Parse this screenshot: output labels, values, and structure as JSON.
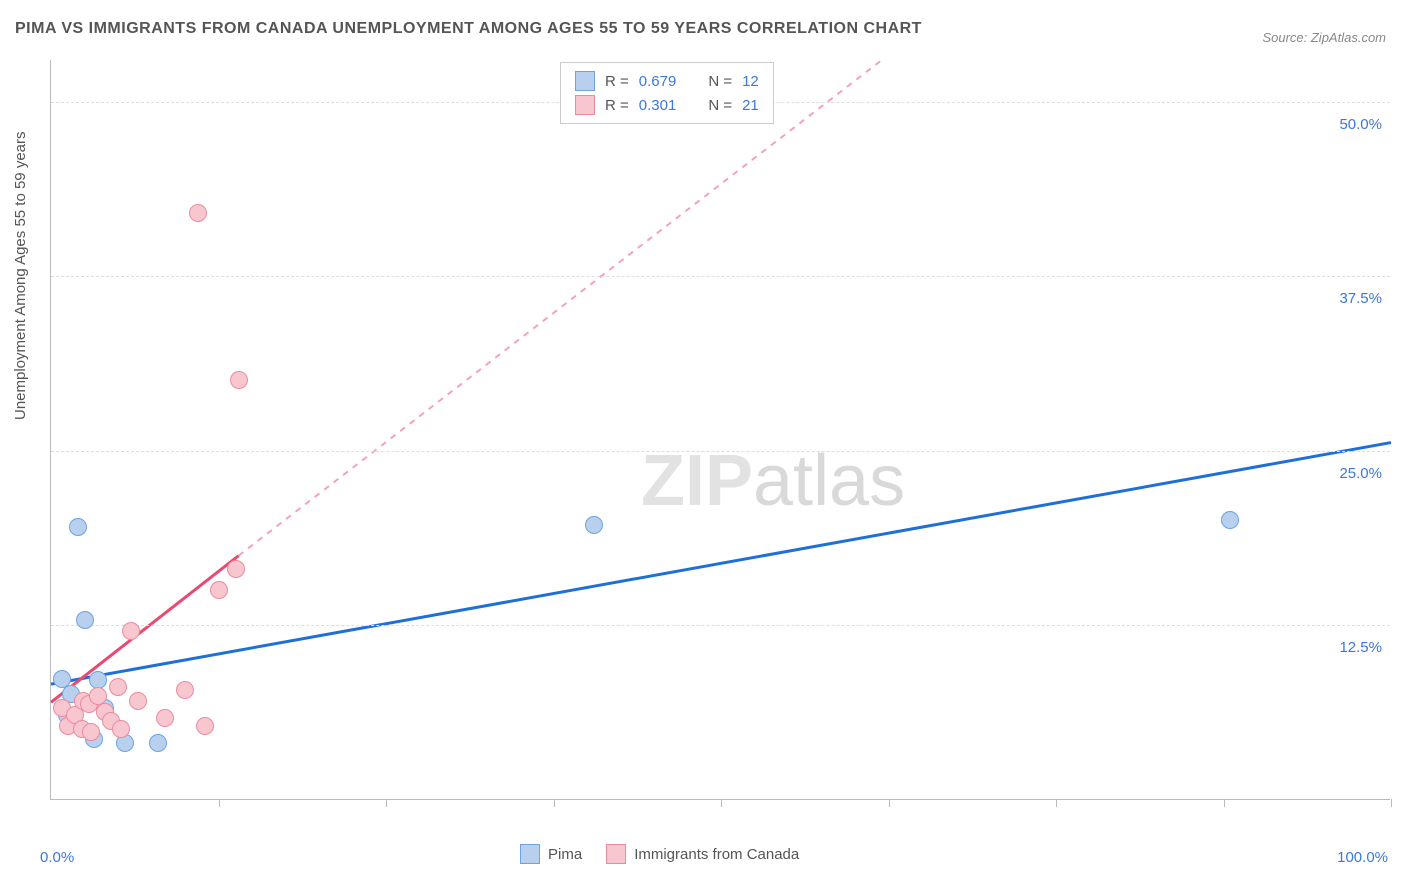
{
  "title": "PIMA VS IMMIGRANTS FROM CANADA UNEMPLOYMENT AMONG AGES 55 TO 59 YEARS CORRELATION CHART",
  "source": "Source: ZipAtlas.com",
  "ylabel": "Unemployment Among Ages 55 to 59 years",
  "watermark_a": "ZIP",
  "watermark_b": "atlas",
  "axes": {
    "x_min_label": "0.0%",
    "x_max_label": "100.0%",
    "xlim": [
      0,
      100
    ],
    "ylim": [
      0,
      53
    ],
    "x_ticks": [
      12.5,
      25,
      37.5,
      50,
      62.5,
      75,
      87.5,
      100
    ],
    "y_grid": [
      {
        "val": 12.5,
        "label": "12.5%"
      },
      {
        "val": 25.0,
        "label": "25.0%"
      },
      {
        "val": 37.5,
        "label": "37.5%"
      },
      {
        "val": 50.0,
        "label": "50.0%"
      }
    ],
    "grid_color": "#dddddd",
    "axis_color": "#bbbbbb",
    "label_color": "#3c78d8"
  },
  "series": [
    {
      "name": "Pima",
      "color_fill": "#b8d0ee",
      "color_stroke": "#6fa3e0",
      "r_value": "0.679",
      "n_value": "12",
      "trend": {
        "x1": 0,
        "y1": 8.3,
        "x2": 100,
        "y2": 25.6,
        "color": "#1f6fd8"
      },
      "points": [
        {
          "x": 0.8,
          "y": 8.6
        },
        {
          "x": 1.2,
          "y": 6.0
        },
        {
          "x": 1.5,
          "y": 7.5
        },
        {
          "x": 3.2,
          "y": 4.3
        },
        {
          "x": 4.0,
          "y": 6.5
        },
        {
          "x": 5.5,
          "y": 4.0
        },
        {
          "x": 8.0,
          "y": 4.0
        },
        {
          "x": 2.5,
          "y": 12.8
        },
        {
          "x": 2.0,
          "y": 19.5
        },
        {
          "x": 3.5,
          "y": 8.5
        },
        {
          "x": 40.5,
          "y": 19.6
        },
        {
          "x": 88.0,
          "y": 20.0
        }
      ]
    },
    {
      "name": "Immigrants from Canada",
      "color_fill": "#f7c6cf",
      "color_stroke": "#ec8ba0",
      "r_value": "0.301",
      "n_value": "21",
      "trend_solid": {
        "x1": 0,
        "y1": 7.0,
        "x2": 14,
        "y2": 17.5,
        "color": "#e84a72"
      },
      "trend_dash": {
        "x1": 14,
        "y1": 17.5,
        "x2": 62,
        "y2": 53.0,
        "color": "#f4a3b6"
      },
      "points": [
        {
          "x": 0.8,
          "y": 6.5
        },
        {
          "x": 1.3,
          "y": 5.2
        },
        {
          "x": 1.8,
          "y": 6.0
        },
        {
          "x": 2.3,
          "y": 5.0
        },
        {
          "x": 2.4,
          "y": 7.0
        },
        {
          "x": 2.8,
          "y": 6.8
        },
        {
          "x": 3.0,
          "y": 4.8
        },
        {
          "x": 3.5,
          "y": 7.4
        },
        {
          "x": 4.0,
          "y": 6.2
        },
        {
          "x": 4.5,
          "y": 5.6
        },
        {
          "x": 5.0,
          "y": 8.0
        },
        {
          "x": 5.2,
          "y": 5.0
        },
        {
          "x": 6.0,
          "y": 12.0
        },
        {
          "x": 6.5,
          "y": 7.0
        },
        {
          "x": 8.5,
          "y": 5.8
        },
        {
          "x": 10.0,
          "y": 7.8
        },
        {
          "x": 11.5,
          "y": 5.2
        },
        {
          "x": 12.5,
          "y": 15.0
        },
        {
          "x": 13.8,
          "y": 16.5
        },
        {
          "x": 14.0,
          "y": 30.0
        },
        {
          "x": 11.0,
          "y": 42.0
        }
      ]
    }
  ],
  "legend_top": {
    "r_label": "R =",
    "n_label": "N ="
  },
  "fonts": {
    "title_size": 16,
    "label_size": 15
  },
  "background_color": "#ffffff"
}
